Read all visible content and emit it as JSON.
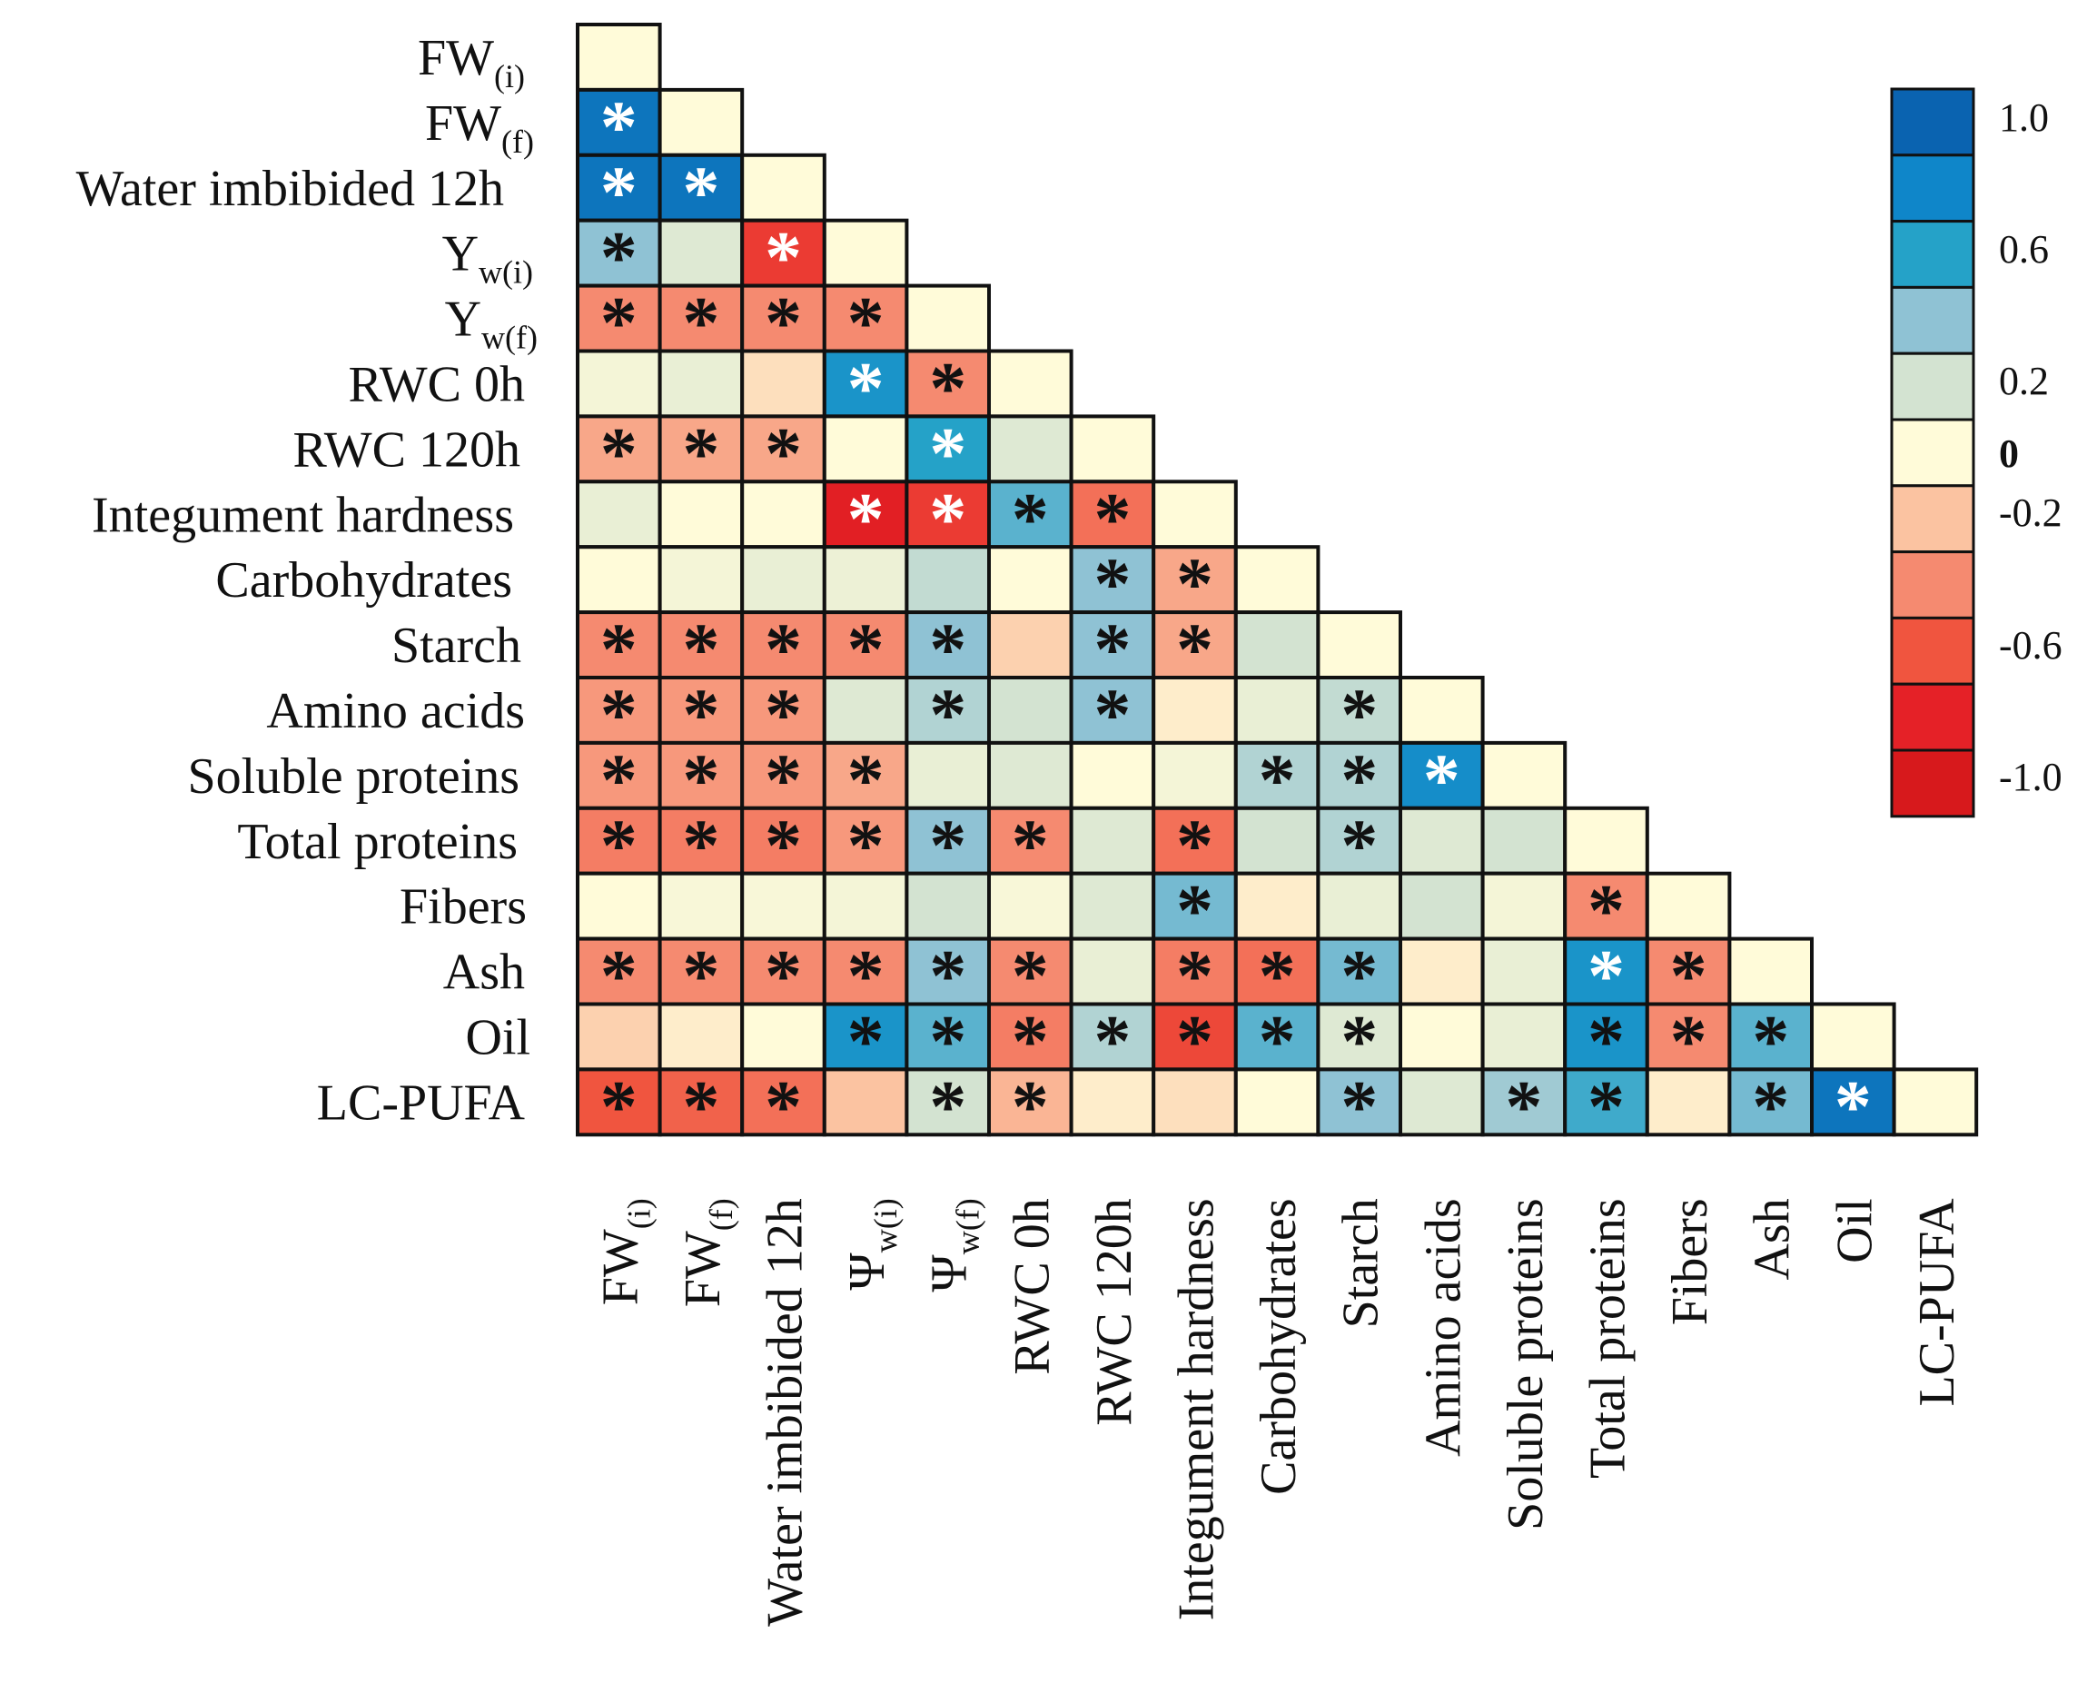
{
  "chart_data": {
    "type": "heatmap",
    "layout": "lower-triangle correlation matrix",
    "variables": [
      {
        "label": "FW",
        "sub": "(i)",
        "row_symbol": "FW",
        "col_symbol": "FW"
      },
      {
        "label": "FW",
        "sub": "(f)",
        "row_symbol": "FW",
        "col_symbol": "FW"
      },
      {
        "label": "Water imbibided 12h",
        "sub": "",
        "row_symbol": "Water imbibided 12h",
        "col_symbol": "Water imbibided 12h"
      },
      {
        "label": "Yw(i)",
        "sub": "w(i)",
        "row_symbol": "Y",
        "col_symbol": "Ψ"
      },
      {
        "label": "Yw(f)",
        "sub": "w(f)",
        "row_symbol": "Y",
        "col_symbol": "Ψ"
      },
      {
        "label": "RWC 0h",
        "sub": "",
        "row_symbol": "RWC 0h",
        "col_symbol": "RWC 0h"
      },
      {
        "label": "RWC 120h",
        "sub": "",
        "row_symbol": "RWC 120h",
        "col_symbol": "RWC 120h"
      },
      {
        "label": "Integument hardness",
        "sub": "",
        "row_symbol": "Integument hardness",
        "col_symbol": "Integument hardness"
      },
      {
        "label": "Carbohydrates",
        "sub": "",
        "row_symbol": "Carbohydrates",
        "col_symbol": "Carbohydrates"
      },
      {
        "label": "Starch",
        "sub": "",
        "row_symbol": "Starch",
        "col_symbol": "Starch"
      },
      {
        "label": "Amino acids",
        "sub": "",
        "row_symbol": "Amino acids",
        "col_symbol": "Amino acids"
      },
      {
        "label": "Soluble proteins",
        "sub": "",
        "row_symbol": "Soluble proteins",
        "col_symbol": "Soluble proteins"
      },
      {
        "label": "Total proteins",
        "sub": "",
        "row_symbol": "Total proteins",
        "col_symbol": "Total proteins"
      },
      {
        "label": "Fibers",
        "sub": "",
        "row_symbol": "Fibers",
        "col_symbol": "Fibers"
      },
      {
        "label": "Ash",
        "sub": "",
        "row_symbol": "Ash",
        "col_symbol": "Ash"
      },
      {
        "label": "Oil",
        "sub": "",
        "row_symbol": "Oil",
        "col_symbol": "Oil"
      },
      {
        "label": "LC-PUFA",
        "sub": "",
        "row_symbol": "LC-PUFA",
        "col_symbol": "LC-PUFA"
      }
    ],
    "values": [
      [
        0
      ],
      [
        0.9,
        0
      ],
      [
        0.9,
        0.9,
        0
      ],
      [
        0.4,
        0.15,
        -0.7,
        0
      ],
      [
        -0.4,
        -0.4,
        -0.4,
        -0.4,
        0
      ],
      [
        0.05,
        0.1,
        -0.1,
        0.7,
        -0.4,
        0
      ],
      [
        -0.3,
        -0.3,
        -0.3,
        0,
        0.6,
        0.15,
        0
      ],
      [
        0.1,
        0,
        0,
        -0.85,
        -0.7,
        0.5,
        -0.5,
        0
      ],
      [
        0,
        0.05,
        0.1,
        0.08,
        0.25,
        0,
        0.4,
        -0.3,
        0
      ],
      [
        -0.4,
        -0.4,
        -0.4,
        -0.4,
        0.4,
        -0.15,
        0.4,
        -0.3,
        0.2,
        0
      ],
      [
        -0.35,
        -0.35,
        -0.35,
        0.15,
        0.3,
        0.2,
        0.4,
        -0.05,
        0.1,
        0.25,
        0
      ],
      [
        -0.35,
        -0.35,
        -0.35,
        -0.3,
        0.1,
        0.15,
        0,
        0.05,
        0.3,
        0.3,
        0.75,
        0
      ],
      [
        -0.45,
        -0.45,
        -0.45,
        -0.35,
        0.4,
        -0.4,
        0.15,
        -0.5,
        0.2,
        0.3,
        0.15,
        0.2,
        0
      ],
      [
        0,
        0.03,
        0.03,
        0.05,
        0.2,
        0.03,
        0.15,
        0.45,
        -0.05,
        0.1,
        0.2,
        0.05,
        -0.4,
        0
      ],
      [
        -0.4,
        -0.4,
        -0.4,
        -0.4,
        0.4,
        -0.4,
        0.1,
        -0.45,
        -0.5,
        0.45,
        -0.05,
        0.1,
        0.7,
        -0.4,
        0
      ],
      [
        -0.15,
        -0.05,
        0,
        0.7,
        0.5,
        -0.45,
        0.3,
        -0.65,
        0.5,
        0.15,
        0,
        0.1,
        0.7,
        -0.4,
        0.5,
        0
      ],
      [
        -0.6,
        -0.55,
        -0.5,
        -0.2,
        0.2,
        -0.25,
        -0.05,
        -0.1,
        0,
        0.4,
        0.15,
        0.35,
        0.55,
        -0.05,
        0.45,
        0.9,
        0
      ]
    ],
    "significance": [
      [
        0
      ],
      [
        2,
        0
      ],
      [
        2,
        2,
        0
      ],
      [
        1,
        0,
        2,
        0
      ],
      [
        1,
        1,
        1,
        1,
        0
      ],
      [
        0,
        0,
        0,
        2,
        1,
        0
      ],
      [
        1,
        1,
        1,
        0,
        2,
        0,
        0
      ],
      [
        0,
        0,
        0,
        2,
        2,
        1,
        1,
        0
      ],
      [
        0,
        0,
        0,
        0,
        0,
        0,
        1,
        1,
        0
      ],
      [
        1,
        1,
        1,
        1,
        1,
        0,
        1,
        1,
        0,
        0
      ],
      [
        1,
        1,
        1,
        0,
        1,
        0,
        1,
        0,
        0,
        1,
        0
      ],
      [
        1,
        1,
        1,
        1,
        0,
        0,
        0,
        0,
        1,
        1,
        2,
        0
      ],
      [
        1,
        1,
        1,
        1,
        1,
        1,
        0,
        1,
        0,
        1,
        0,
        0,
        0
      ],
      [
        0,
        0,
        0,
        0,
        0,
        0,
        0,
        1,
        0,
        0,
        0,
        0,
        1,
        0
      ],
      [
        1,
        1,
        1,
        1,
        1,
        1,
        0,
        1,
        1,
        1,
        0,
        0,
        2,
        1,
        0
      ],
      [
        0,
        0,
        0,
        1,
        1,
        1,
        1,
        1,
        1,
        1,
        0,
        0,
        1,
        1,
        1,
        0
      ],
      [
        1,
        1,
        1,
        0,
        1,
        1,
        0,
        0,
        0,
        1,
        0,
        1,
        1,
        0,
        1,
        2,
        0
      ]
    ],
    "significance_mark": "*",
    "colorbar": {
      "ticks": [
        "1.0",
        "0.6",
        "0.2",
        "0",
        "-0.2",
        "-0.6",
        "-1.0"
      ],
      "bold_tick": "0",
      "steps": [
        1.0,
        0.8,
        0.6,
        0.4,
        0.2,
        0.0,
        -0.2,
        -0.4,
        -0.6,
        -0.8,
        -1.0
      ],
      "range": [
        -1.0,
        1.0
      ]
    },
    "colors": {
      "stops": [
        {
          "v": -1.0,
          "c": "#d7191c"
        },
        {
          "v": -0.8,
          "c": "#e52127"
        },
        {
          "v": -0.6,
          "c": "#f0553f"
        },
        {
          "v": -0.4,
          "c": "#f58a70"
        },
        {
          "v": -0.2,
          "c": "#fbc3a1"
        },
        {
          "v": 0.0,
          "c": "#fffbd9"
        },
        {
          "v": 0.2,
          "c": "#d3e3d1"
        },
        {
          "v": 0.4,
          "c": "#8fc2d4"
        },
        {
          "v": 0.6,
          "c": "#25a2c8"
        },
        {
          "v": 0.8,
          "c": "#0f86c9"
        },
        {
          "v": 1.0,
          "c": "#0a63b0"
        }
      ],
      "star_black": "#111111",
      "star_white": "#ffffff",
      "grid_stroke": "#111111"
    }
  }
}
